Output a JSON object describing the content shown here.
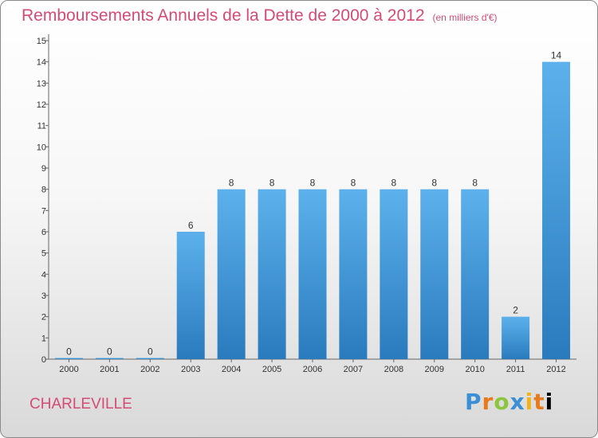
{
  "header": {
    "title": "Remboursements Annuels de la Dette de 2000 à 2012",
    "subtitle": "(en milliers d'€)"
  },
  "footer": {
    "city": "CHARLEVILLE",
    "logo_letters": [
      "P",
      "r",
      "o",
      "x",
      "i",
      "t",
      "i"
    ]
  },
  "colors": {
    "title": "#d64a74",
    "bar_top": "#5cb1ec",
    "bar_bottom": "#2a7bbd"
  },
  "chart_data": {
    "type": "bar",
    "title": "Remboursements Annuels de la Dette de 2000 à 2012",
    "subtitle": "(en milliers d'€)",
    "categories": [
      "2000",
      "2001",
      "2002",
      "2003",
      "2004",
      "2005",
      "2006",
      "2007",
      "2008",
      "2009",
      "2010",
      "2011",
      "2012"
    ],
    "values": [
      0,
      0,
      0,
      6,
      8,
      8,
      8,
      8,
      8,
      8,
      8,
      2,
      14
    ],
    "ylim": [
      0,
      15
    ],
    "yticks": [
      0,
      1,
      2,
      3,
      4,
      5,
      6,
      7,
      8,
      9,
      10,
      11,
      12,
      13,
      14,
      15
    ],
    "grid": false,
    "legend": "none"
  }
}
